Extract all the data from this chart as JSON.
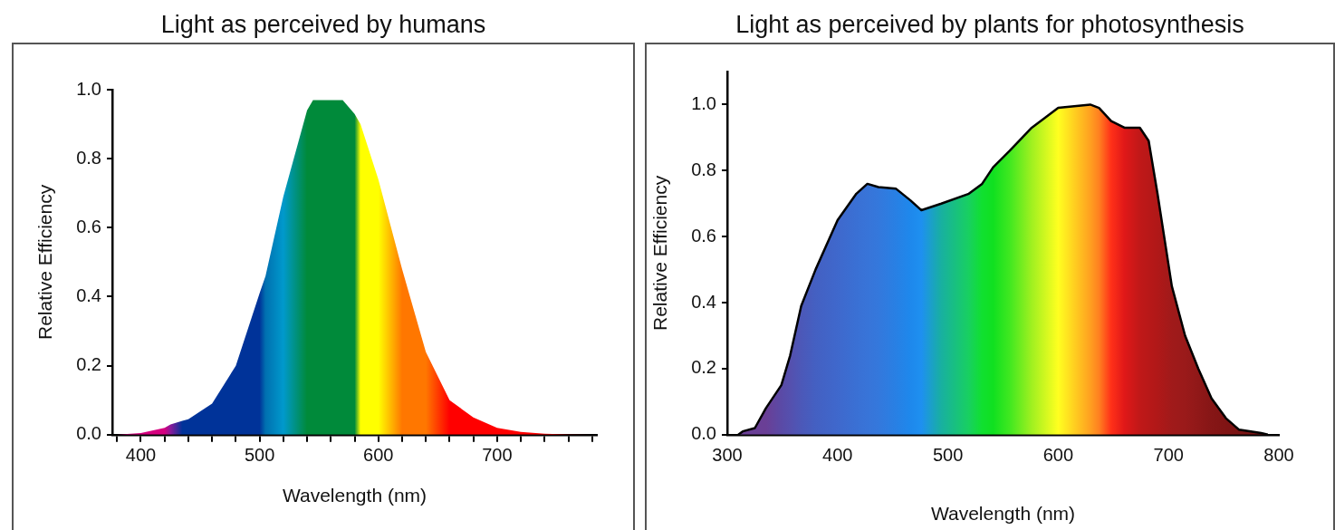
{
  "chart_data": [
    {
      "type": "area",
      "title": "Light as perceived by humans",
      "xlabel": "Wavelength (nm)",
      "ylabel": "Relative Efficiency",
      "xlim": [
        376,
        784
      ],
      "ylim": [
        0,
        1.0
      ],
      "xticks": [
        {
          "value": 380,
          "label": null
        },
        {
          "value": 400,
          "label": "400"
        },
        {
          "value": 420,
          "label": null
        },
        {
          "value": 440,
          "label": null
        },
        {
          "value": 460,
          "label": null
        },
        {
          "value": 480,
          "label": null
        },
        {
          "value": 500,
          "label": "500"
        },
        {
          "value": 520,
          "label": null
        },
        {
          "value": 540,
          "label": null
        },
        {
          "value": 560,
          "label": null
        },
        {
          "value": 580,
          "label": null
        },
        {
          "value": 600,
          "label": "600"
        },
        {
          "value": 620,
          "label": null
        },
        {
          "value": 640,
          "label": null
        },
        {
          "value": 660,
          "label": null
        },
        {
          "value": 680,
          "label": null
        },
        {
          "value": 700,
          "label": "700"
        },
        {
          "value": 720,
          "label": null
        },
        {
          "value": 740,
          "label": null
        },
        {
          "value": 760,
          "label": null
        },
        {
          "value": 780,
          "label": null
        }
      ],
      "yticks": [
        {
          "value": 0,
          "label": "0.0"
        },
        {
          "value": 0.2,
          "label": "0.2"
        },
        {
          "value": 0.4,
          "label": "0.4"
        },
        {
          "value": 0.6,
          "label": "0.6"
        },
        {
          "value": 0.8,
          "label": "0.8"
        },
        {
          "value": 1.0,
          "label": "1.0"
        }
      ],
      "grid": false,
      "legend": false,
      "marker": "none",
      "series": [
        {
          "x": [
            380,
            400,
            420,
            425,
            435,
            440,
            460,
            480,
            500,
            505,
            520,
            540,
            545,
            570,
            580,
            585,
            600,
            620,
            640,
            660,
            680,
            700,
            720,
            740,
            760,
            780
          ],
          "values": [
            0.0,
            0.005,
            0.02,
            0.03,
            0.04,
            0.045,
            0.09,
            0.2,
            0.41,
            0.46,
            0.69,
            0.94,
            0.97,
            0.97,
            0.93,
            0.9,
            0.74,
            0.48,
            0.24,
            0.1,
            0.05,
            0.02,
            0.008,
            0.003,
            0.001,
            0.0
          ],
          "colors": [
            "#d6007f",
            "#d6007f",
            "#d6007f",
            "#8a1a9a",
            "#003399",
            "#003399",
            "#003399",
            "#003399",
            "#003399",
            "#0070b0",
            "#0099cc",
            "#008a3a",
            "#008a3a",
            "#008a3a",
            "#008a3a",
            "#ffff00",
            "#ffff00",
            "#ff7700",
            "#ff7700",
            "#ff0000",
            "#ff0000",
            "#ff0000",
            "#ff0000",
            "#ff0000",
            "#ff0000",
            "#ff0000"
          ]
        }
      ]
    },
    {
      "type": "area",
      "title": "Light as perceived by plants for photosynthesis",
      "xlabel": "Wavelength (nm)",
      "ylabel": "Relative Efficiency",
      "xlim": [
        300,
        800
      ],
      "ylim": [
        0,
        1.1
      ],
      "xticks": [
        300,
        400,
        500,
        600,
        700,
        800
      ],
      "yticks": [
        {
          "value": 0,
          "label": "0.0"
        },
        {
          "value": 0.2,
          "label": "0.2"
        },
        {
          "value": 0.4,
          "label": "0.4"
        },
        {
          "value": 0.6,
          "label": "0.6"
        },
        {
          "value": 0.8,
          "label": "0.8"
        },
        {
          "value": 1.0,
          "label": "1.0"
        }
      ],
      "grid": false,
      "legend": false,
      "marker": "none",
      "series": [
        {
          "color": "#000000",
          "x": [
            310,
            314,
            325,
            335,
            349,
            357,
            367,
            380,
            400,
            417,
            427,
            437,
            453,
            466,
            476,
            494,
            519,
            531,
            541,
            556,
            576,
            600,
            629,
            637,
            648,
            660,
            674,
            682,
            690,
            703,
            715,
            727,
            739,
            752,
            764,
            784,
            790
          ],
          "values": [
            0.0,
            0.01,
            0.02,
            0.08,
            0.15,
            0.24,
            0.39,
            0.5,
            0.65,
            0.73,
            0.76,
            0.75,
            0.745,
            0.71,
            0.68,
            0.7,
            0.73,
            0.76,
            0.81,
            0.86,
            0.93,
            0.99,
            1.0,
            0.99,
            0.95,
            0.93,
            0.93,
            0.89,
            0.73,
            0.45,
            0.3,
            0.2,
            0.11,
            0.05,
            0.015,
            0.005,
            0.0
          ],
          "colors": [
            "#6a3f96",
            "#6a3f96",
            "#6a3f96",
            "#6a3f96",
            "#5a4aa6",
            "#5550ae",
            "#4c58b8",
            "#4460c2",
            "#3f68cc",
            "#3a70d4",
            "#3874d8",
            "#3478dc",
            "#2880e4",
            "#1e88ec",
            "#1e90f0",
            "#18b0a0",
            "#18d060",
            "#10e030",
            "#10e020",
            "#40e820",
            "#a0f020",
            "#ffff20",
            "#ffa020",
            "#ff8020",
            "#ff3018",
            "#e01818",
            "#c01818",
            "#b81818",
            "#b01818",
            "#a01a1a",
            "#9a1a1a",
            "#901818",
            "#861616",
            "#801414",
            "#7a1414",
            "#7a1414",
            "#7a1414"
          ]
        }
      ]
    }
  ]
}
